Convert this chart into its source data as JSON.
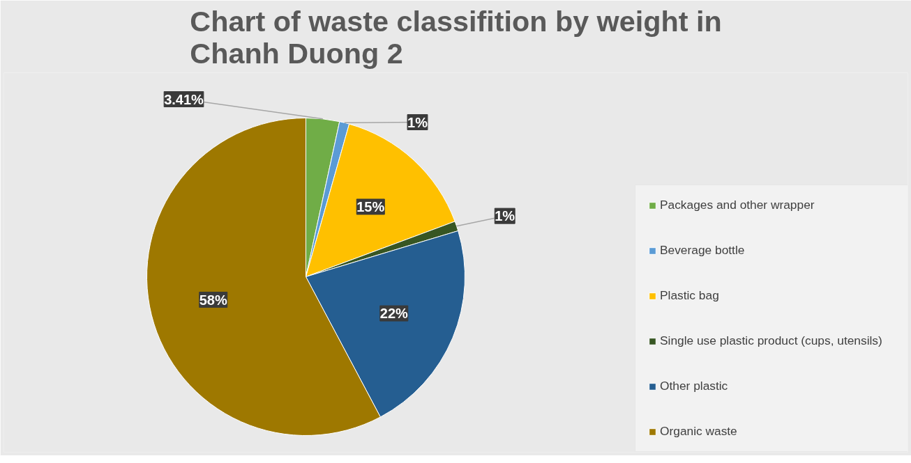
{
  "chart_data": {
    "type": "pie",
    "title": "Chart of waste classifition by weight in Chanh Duong 2",
    "categories": [
      "Packages and other wrapper",
      "Beverage bottle",
      "Plastic bag",
      "Single use plastic product (cups, utensils)",
      "Other plastic",
      "Organic waste"
    ],
    "values": [
      3.41,
      1,
      15,
      1,
      22,
      58
    ],
    "value_labels": [
      "3.41%",
      "1%",
      "15%",
      "1%",
      "22%",
      "58%"
    ],
    "colors": [
      "#70ad47",
      "#5b9bd5",
      "#ffc000",
      "#375623",
      "#255e91",
      "#9e7800"
    ],
    "legend": "right"
  }
}
